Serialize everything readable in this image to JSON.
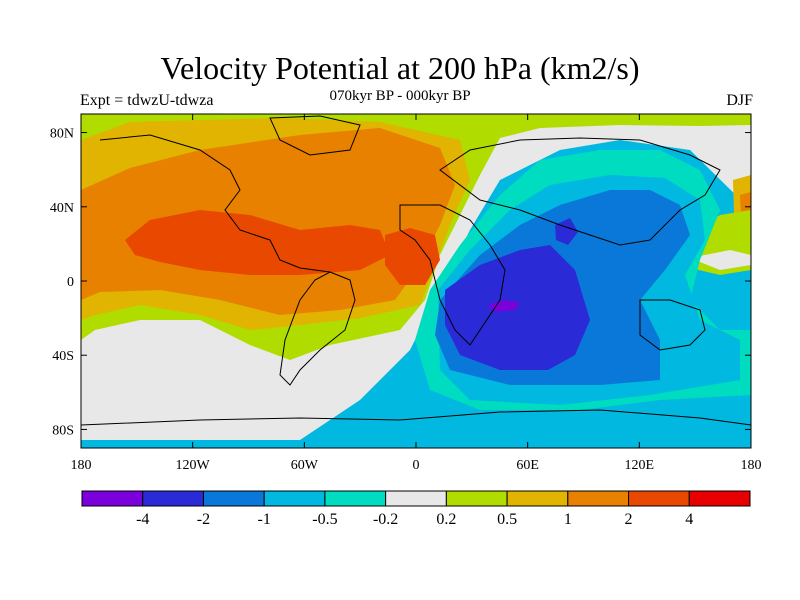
{
  "title": "Velocity Potential at 200 hPa (km2/s)",
  "left_label": "Expt = tdwzU-tdwza",
  "center_label": "070kyr BP - 000kyr BP",
  "right_label": "DJF",
  "map": {
    "lon_ticks": [
      {
        "value": -180,
        "label": "180"
      },
      {
        "value": -120,
        "label": "120W"
      },
      {
        "value": -60,
        "label": "60W"
      },
      {
        "value": 0,
        "label": "0"
      },
      {
        "value": 60,
        "label": "60E"
      },
      {
        "value": 120,
        "label": "120E"
      },
      {
        "value": 180,
        "label": "180"
      }
    ],
    "lat_ticks": [
      {
        "value": 80,
        "label": "80N"
      },
      {
        "value": 40,
        "label": "40N"
      },
      {
        "value": 0,
        "label": "0"
      },
      {
        "value": -40,
        "label": "40S"
      },
      {
        "value": -80,
        "label": "80S"
      }
    ]
  },
  "colorbar": {
    "colors": [
      "#7a00dc",
      "#2a2ad6",
      "#0a78d8",
      "#00b8e0",
      "#00dcc0",
      "#e8e8e8",
      "#b0dc00",
      "#e0b400",
      "#e88000",
      "#e84800",
      "#e80000"
    ],
    "labels": [
      "-4",
      "-2",
      "-1",
      "-0.5",
      "-0.2",
      "0.2",
      "0.5",
      "1",
      "2",
      "4"
    ]
  }
}
